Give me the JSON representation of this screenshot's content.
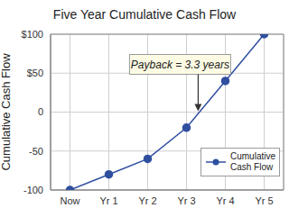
{
  "chart_data": {
    "type": "line",
    "title": "Five Year Cumulative Cash Flow",
    "y_label": "Cumulative Cash Flow",
    "x": [
      0,
      1,
      2,
      3,
      4,
      5
    ],
    "xlim": [
      -0.5,
      5.5
    ],
    "xticks": [
      {
        "value": 0,
        "label": "Now"
      },
      {
        "value": 1,
        "label": "Yr 1"
      },
      {
        "value": 2,
        "label": "Yr 2"
      },
      {
        "value": 3,
        "label": "Yr 3"
      },
      {
        "value": 4,
        "label": "Yr 4"
      },
      {
        "value": 5,
        "label": "Yr 5"
      }
    ],
    "ylim": [
      -100,
      100
    ],
    "yticks": [
      -100,
      -50,
      0,
      {
        "value": 50,
        "label": "$50"
      },
      {
        "value": 100,
        "label": "$100"
      }
    ],
    "grid": true,
    "legend": "lower right",
    "series": [
      {
        "name": "Cumulative Cash Flow",
        "color": "#2f4f9f",
        "marker": "circle",
        "line_style": "solid",
        "values": [
          -100,
          -80,
          -60,
          -20,
          40,
          100
        ]
      }
    ],
    "annotations": [
      {
        "text": "Payback = 3.3 years",
        "x": 3.3,
        "y": 0
      }
    ]
  }
}
